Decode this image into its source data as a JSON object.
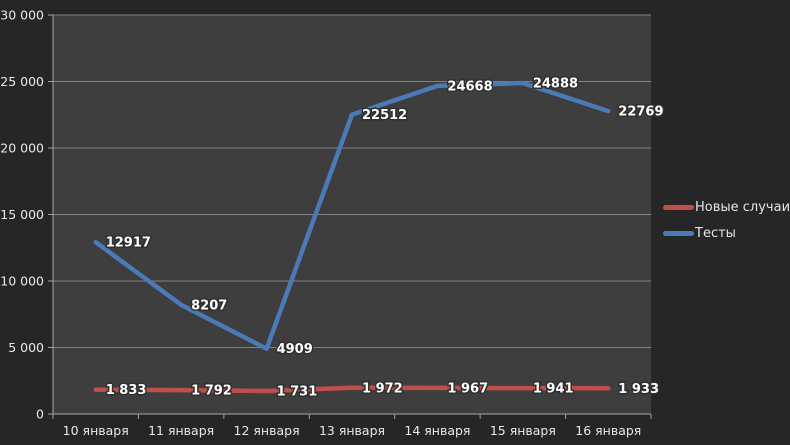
{
  "chart_data": {
    "type": "line",
    "title": "",
    "xlabel": "",
    "ylabel": "",
    "categories": [
      "10 января",
      "11 января",
      "12 января",
      "13 января",
      "14 января",
      "15 января",
      "16 января"
    ],
    "series": [
      {
        "name": "Новые случаи",
        "color": "#bf4f4c",
        "values": [
          1833,
          1792,
          1731,
          1972,
          1967,
          1941,
          1933
        ],
        "labels": [
          "1 833",
          "1 792",
          "1 731",
          "1 972",
          "1 967",
          "1 941",
          "1 933"
        ]
      },
      {
        "name": "Тесты",
        "color": "#4a7bb7",
        "values": [
          12917,
          8207,
          4909,
          22512,
          24668,
          24888,
          22769
        ],
        "labels": [
          "12917",
          "8207",
          "4909",
          "22512",
          "24668",
          "24888",
          "22769"
        ]
      }
    ],
    "ylim": [
      0,
      30000
    ],
    "ytick_step": 5000,
    "ytick_labels": [
      "0",
      "5 000",
      "10 000",
      "15 000",
      "20 000",
      "25 000",
      "30 000"
    ],
    "grid": true,
    "legend_position": "right",
    "colors": {
      "background": "#262626",
      "plot_background": "#3e3e3e",
      "gridline": "#828282",
      "axis_line": "#a6a6a6",
      "axis_text": "#e8e8e8",
      "data_label_text": "#ffffff",
      "data_label_outline": "#303030",
      "legend_text": "#e6e6e6"
    }
  }
}
